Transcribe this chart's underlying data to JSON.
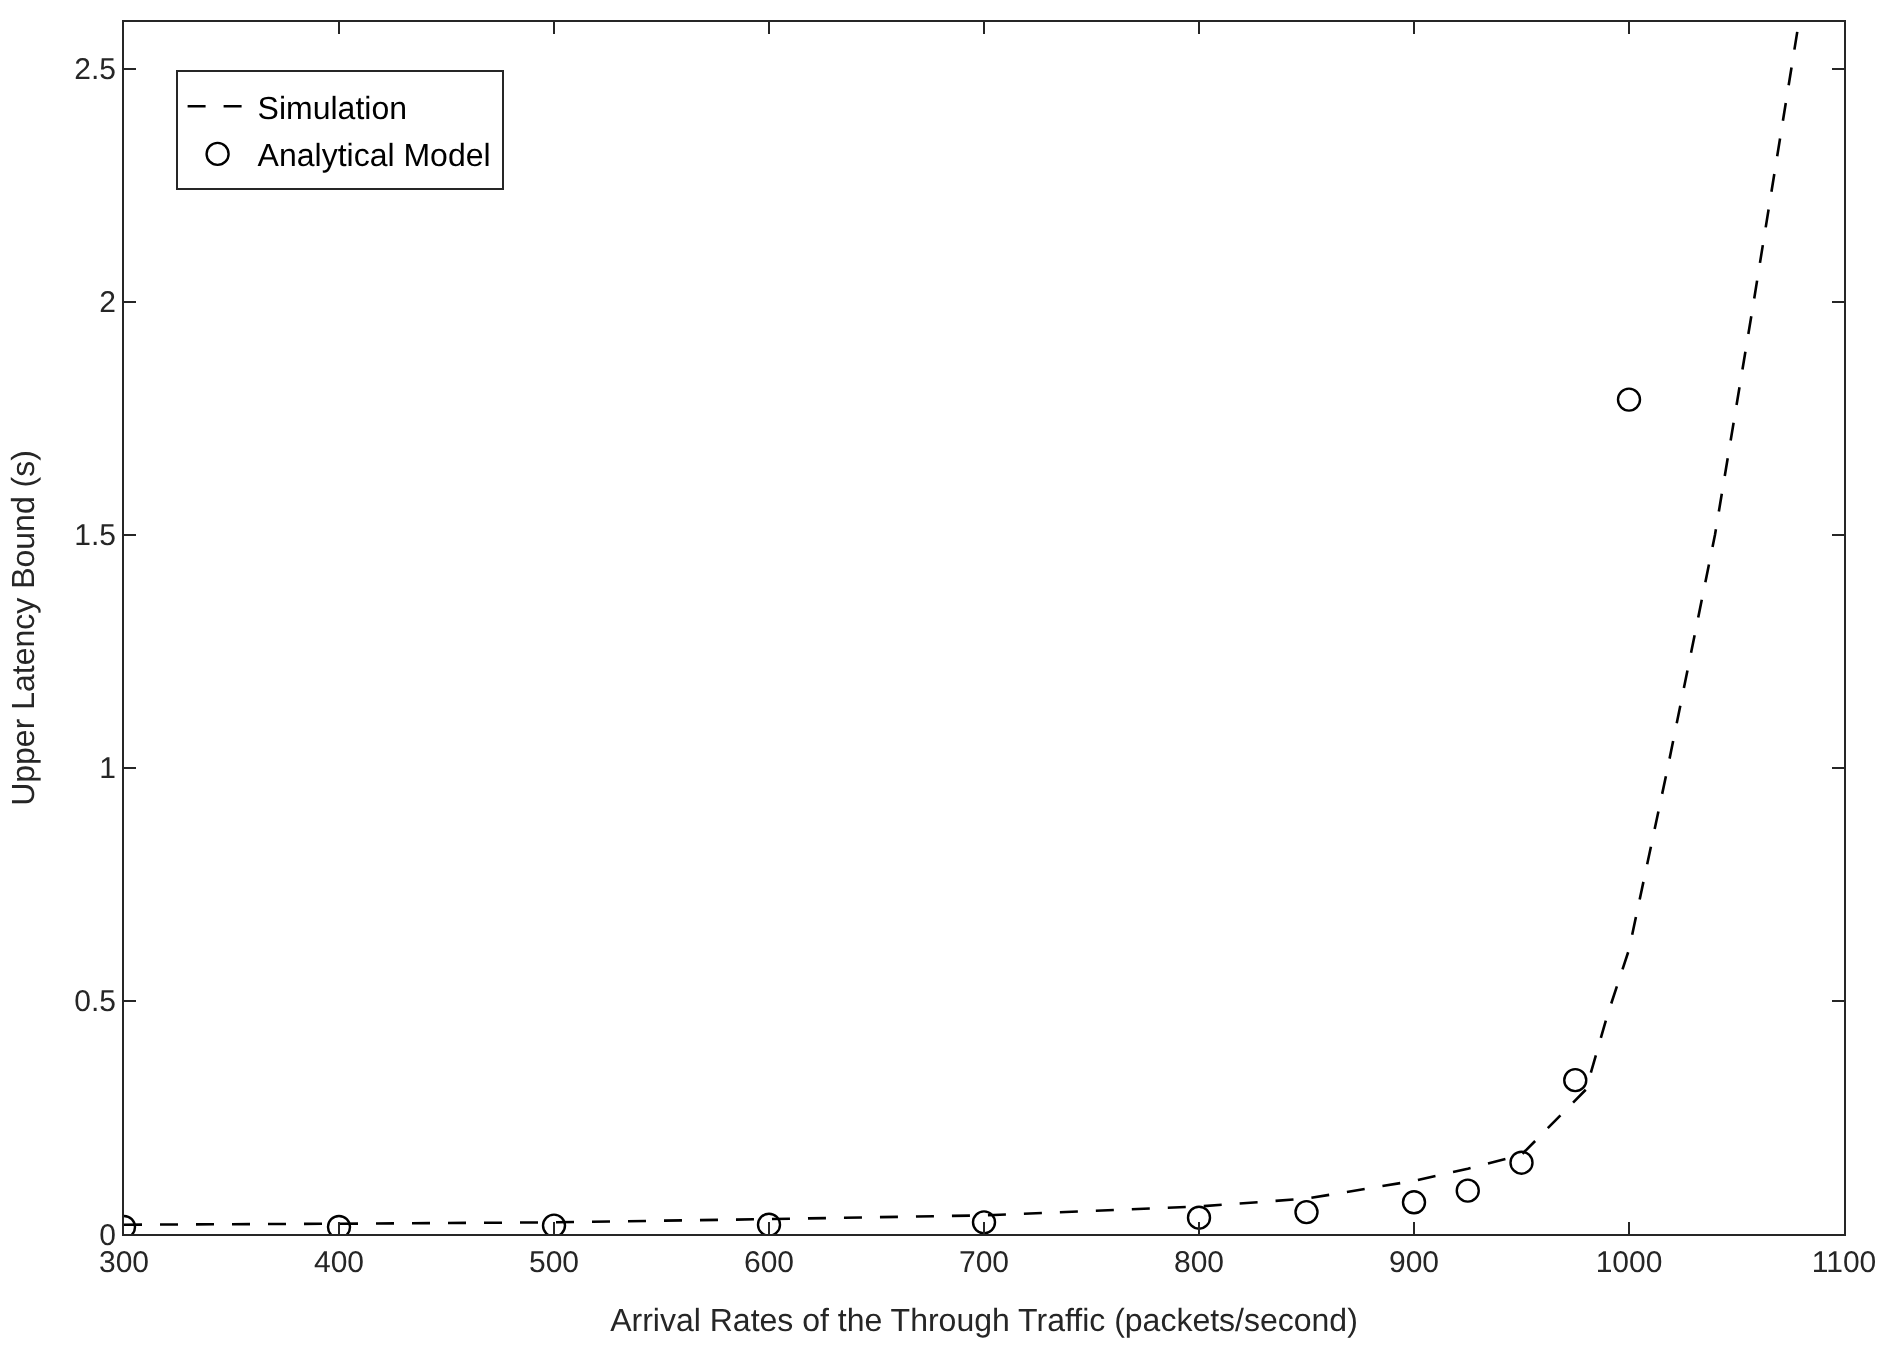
{
  "chart_data": {
    "type": "line",
    "xlabel": "Arrival Rates of the Through Traffic (packets/second)",
    "ylabel": "Upper Latency Bound (s)",
    "xlim": [
      300,
      1100
    ],
    "xticks": [
      300,
      400,
      500,
      600,
      700,
      800,
      900,
      1000,
      1100
    ],
    "ylim": [
      0,
      2.6
    ],
    "yticks": [
      0,
      0.5,
      1,
      1.5,
      2,
      2.5
    ],
    "grid": false,
    "legend": "top left",
    "series": [
      {
        "name": "Simulation",
        "line_style": "dashed",
        "marker": "none",
        "color": "#000000",
        "x": [
          300,
          400,
          500,
          600,
          700,
          800,
          850,
          900,
          925,
          950,
          965,
          980,
          990,
          1000,
          1018,
          1040,
          1058,
          1079
        ],
        "values": [
          0.02,
          0.022,
          0.025,
          0.032,
          0.04,
          0.059,
          0.076,
          0.114,
          0.14,
          0.17,
          0.24,
          0.31,
          0.47,
          0.61,
          1.0,
          1.5,
          2.0,
          2.6
        ]
      },
      {
        "name": "Analytical Model",
        "type": "scatter",
        "marker": "circle",
        "color": "#000000",
        "x": [
          300,
          400,
          500,
          600,
          700,
          800,
          850,
          900,
          925,
          950,
          975,
          1000
        ],
        "values": [
          0.015,
          0.015,
          0.018,
          0.02,
          0.025,
          0.035,
          0.047,
          0.068,
          0.093,
          0.153,
          0.33,
          1.79
        ]
      }
    ]
  }
}
